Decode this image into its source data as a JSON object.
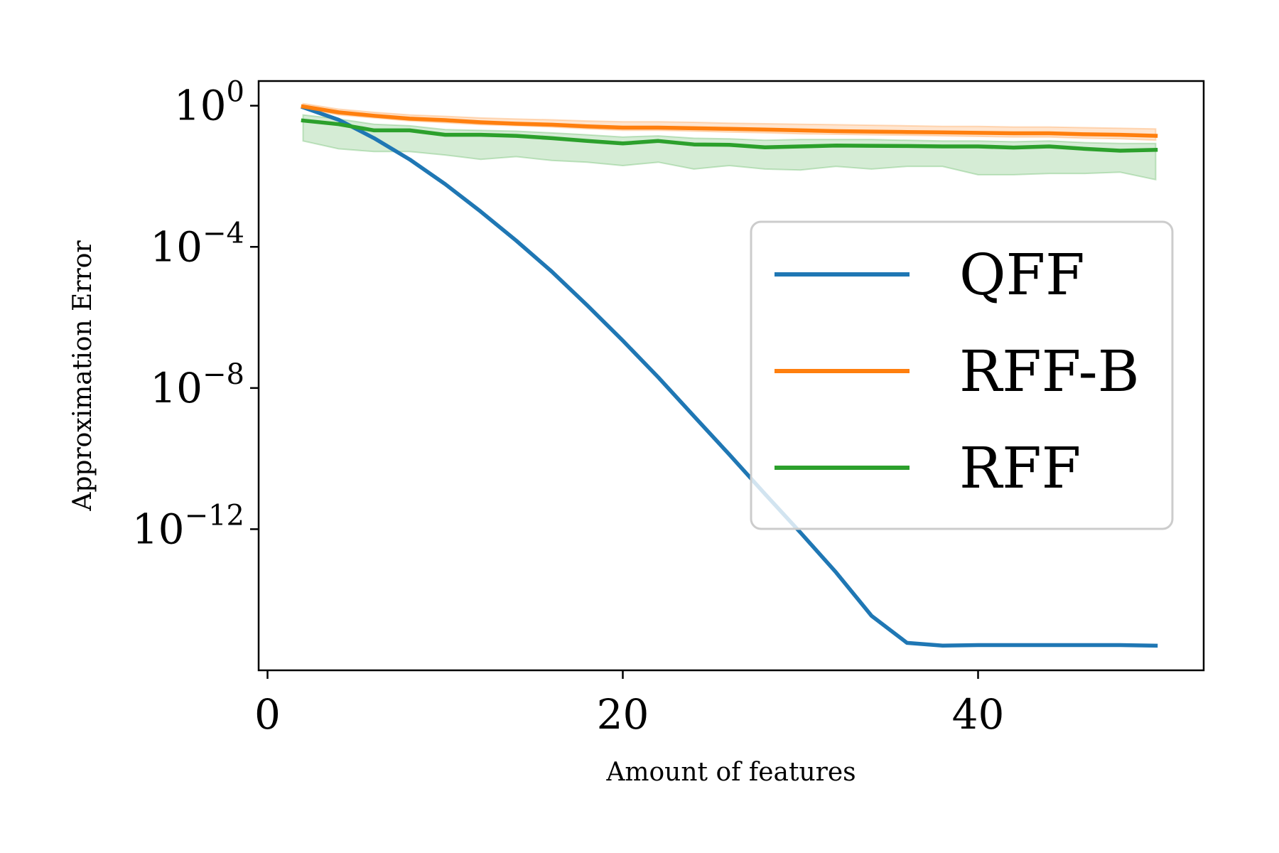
{
  "chart_data": {
    "type": "line",
    "title": "",
    "xlabel": "Amount of features",
    "ylabel": "Approximation Error",
    "yscale": "log",
    "xlim": [
      -0.5,
      52.7
    ],
    "ylim": [
      1e-16,
      5
    ],
    "xticks": [
      {
        "value": 0,
        "label": "0"
      },
      {
        "value": 20,
        "label": "20"
      },
      {
        "value": 40,
        "label": "40"
      }
    ],
    "yticks": [
      {
        "value": 1,
        "base": "10",
        "exp": "0"
      },
      {
        "value": 0.0001,
        "base": "10",
        "exp": "−4"
      },
      {
        "value": 1e-08,
        "base": "10",
        "exp": "−8"
      },
      {
        "value": 1e-12,
        "base": "10",
        "exp": "−12"
      }
    ],
    "grid": false,
    "legend_position": "right",
    "x": [
      2,
      4,
      6,
      8,
      10,
      12,
      14,
      16,
      18,
      20,
      22,
      24,
      26,
      28,
      30,
      32,
      34,
      36,
      38,
      40,
      42,
      44,
      46,
      48,
      50
    ],
    "series": [
      {
        "name": "QFF",
        "color": "#1f77b4",
        "values": [
          0.9,
          0.4,
          0.12,
          0.03,
          0.006,
          0.001,
          0.00015,
          2e-05,
          2.2e-06,
          2.2e-07,
          2e-08,
          1.6e-09,
          1.3e-10,
          1e-11,
          8e-13,
          6e-14,
          3.5e-15,
          6e-16,
          5e-16,
          5.2e-16,
          5.2e-16,
          5.2e-16,
          5.2e-16,
          5.2e-16,
          5e-16
        ],
        "band_lower": [],
        "band_upper": []
      },
      {
        "name": "RFF-B",
        "color": "#ff7f0e",
        "values": [
          0.95,
          0.65,
          0.52,
          0.43,
          0.39,
          0.34,
          0.31,
          0.29,
          0.26,
          0.24,
          0.24,
          0.23,
          0.22,
          0.21,
          0.2,
          0.19,
          0.185,
          0.18,
          0.175,
          0.17,
          0.165,
          0.165,
          0.155,
          0.15,
          0.14
        ],
        "band_lower": [
          0.85,
          0.55,
          0.45,
          0.37,
          0.33,
          0.29,
          0.27,
          0.25,
          0.22,
          0.2,
          0.2,
          0.19,
          0.18,
          0.17,
          0.16,
          0.155,
          0.15,
          0.145,
          0.14,
          0.135,
          0.13,
          0.13,
          0.12,
          0.115,
          0.105
        ],
        "band_upper": [
          1.15,
          0.8,
          0.65,
          0.55,
          0.5,
          0.45,
          0.42,
          0.4,
          0.37,
          0.35,
          0.35,
          0.34,
          0.32,
          0.31,
          0.3,
          0.29,
          0.28,
          0.27,
          0.26,
          0.26,
          0.25,
          0.25,
          0.24,
          0.23,
          0.22
        ]
      },
      {
        "name": "RFF",
        "color": "#2ca02c",
        "values": [
          0.38,
          0.3,
          0.2,
          0.2,
          0.15,
          0.15,
          0.14,
          0.12,
          0.1,
          0.085,
          0.1,
          0.08,
          0.078,
          0.066,
          0.07,
          0.074,
          0.073,
          0.072,
          0.07,
          0.07,
          0.065,
          0.07,
          0.06,
          0.053,
          0.056
        ],
        "band_lower": [
          0.1,
          0.06,
          0.05,
          0.05,
          0.04,
          0.03,
          0.036,
          0.028,
          0.025,
          0.02,
          0.025,
          0.016,
          0.02,
          0.016,
          0.015,
          0.019,
          0.016,
          0.019,
          0.019,
          0.011,
          0.011,
          0.012,
          0.012,
          0.013,
          0.008
        ],
        "band_upper": [
          0.55,
          0.42,
          0.3,
          0.27,
          0.21,
          0.2,
          0.19,
          0.17,
          0.15,
          0.13,
          0.14,
          0.12,
          0.115,
          0.105,
          0.11,
          0.11,
          0.11,
          0.105,
          0.1,
          0.1,
          0.095,
          0.1,
          0.09,
          0.085,
          0.085
        ]
      }
    ]
  }
}
